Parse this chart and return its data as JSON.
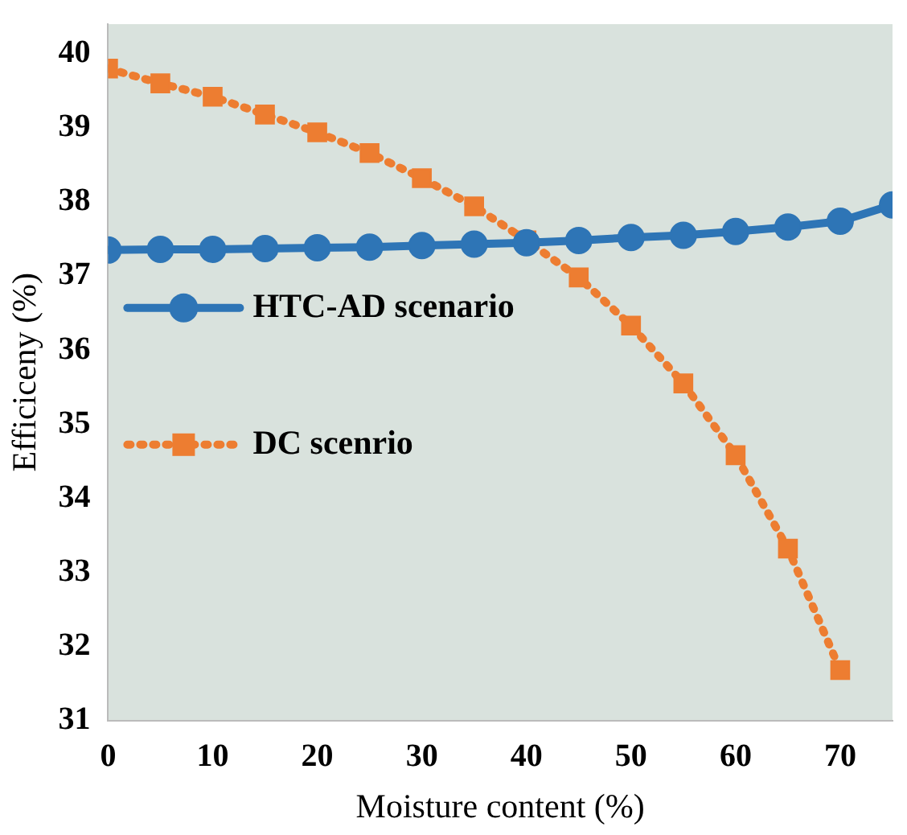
{
  "chart_data": {
    "type": "line",
    "xlabel": "Moisture content (%)",
    "ylabel": "Efficiceny (%)",
    "xlim": [
      0,
      75
    ],
    "xticks": [
      0,
      10,
      20,
      30,
      40,
      50,
      60,
      70
    ],
    "ylim": [
      31,
      40.4
    ],
    "yticks": [
      31,
      32,
      33,
      34,
      35,
      36,
      37,
      38,
      39,
      40
    ],
    "grid": false,
    "legend": "left",
    "series": [
      {
        "name": "HTC-AD scenario",
        "color": "#2e75b6",
        "marker": "circle",
        "line_style": "solid",
        "x": [
          0,
          5,
          10,
          15,
          20,
          25,
          30,
          35,
          40,
          45,
          50,
          55,
          60,
          65,
          70,
          75
        ],
        "values": [
          37.35,
          37.36,
          37.36,
          37.37,
          37.38,
          37.39,
          37.41,
          37.43,
          37.45,
          37.48,
          37.52,
          37.55,
          37.6,
          37.66,
          37.74,
          37.96
        ]
      },
      {
        "name": "DC scenrio",
        "color": "#ed7d31",
        "marker": "square",
        "line_style": "dotted",
        "x": [
          0,
          5,
          10,
          15,
          20,
          25,
          30,
          35,
          40,
          45,
          50,
          55,
          60,
          65,
          70
        ],
        "values": [
          39.8,
          39.6,
          39.42,
          39.18,
          38.94,
          38.66,
          38.32,
          37.94,
          37.48,
          36.98,
          36.33,
          35.55,
          34.58,
          33.32,
          31.68
        ]
      }
    ]
  }
}
